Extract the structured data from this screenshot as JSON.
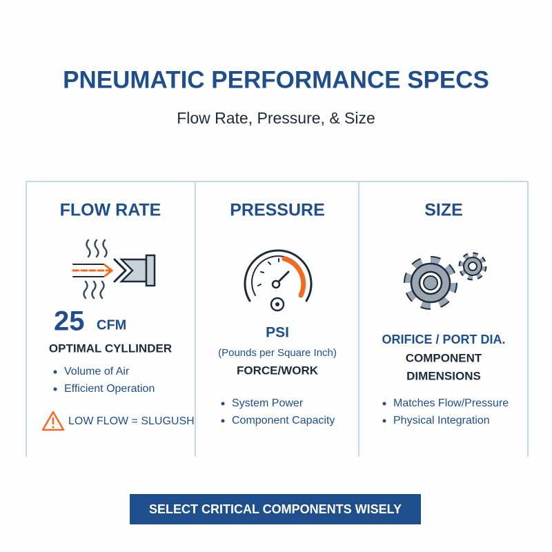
{
  "header": {
    "title": "PNEUMATIC PERFORMANCE SPECS",
    "subtitle": "Flow Rate, Pressure, & Size"
  },
  "columns": [
    {
      "heading": "FLOW RATE",
      "value": "25",
      "unit": "CFM",
      "label": "OPTIMAL CYLLINDER",
      "bullets": [
        "Volume of Air",
        "Efficient Operation"
      ],
      "warning": "LOW FLOW = SLUGUSH"
    },
    {
      "heading": "PRESSURE",
      "unit": "PSI",
      "note": "(Pounds per Square Inch)",
      "label": "FORCE/WORK",
      "bullets": [
        "System Power",
        "Component Capacity"
      ]
    },
    {
      "heading": "SIZE",
      "label": "ORIFICE / PORT DIA.",
      "lines": [
        "COMPONENT",
        "DIMENSIONS"
      ],
      "bullets": [
        "Matches Flow/Pressure",
        "Physical Integration"
      ]
    }
  ],
  "footer": {
    "banner": "SELECT CRITICAL COMPONENTS WISELY"
  }
}
